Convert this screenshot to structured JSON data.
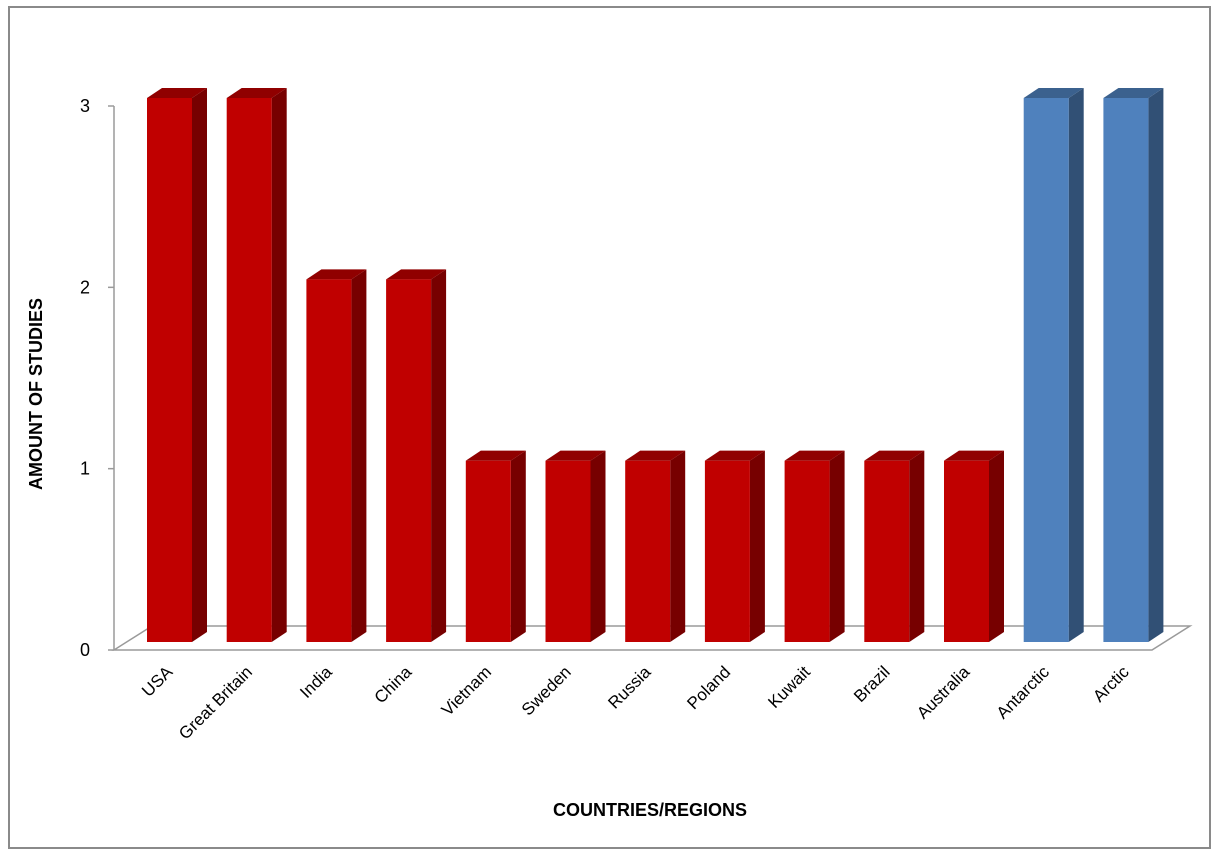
{
  "chart_data": {
    "type": "bar",
    "title": "",
    "xlabel": "COUNTRIES/REGIONS",
    "ylabel": "AMOUNT OF STUDIES",
    "categories": [
      "USA",
      "Great Britain",
      "India",
      "China",
      "Vietnam",
      "Sweden",
      "Russia",
      "Poland",
      "Kuwait",
      "Brazil",
      "Australia",
      "Antarctic",
      "Arctic"
    ],
    "values": [
      3,
      3,
      2,
      2,
      1,
      1,
      1,
      1,
      1,
      1,
      1,
      3,
      3
    ],
    "bar_colors": [
      "#c00000",
      "#c00000",
      "#c00000",
      "#c00000",
      "#c00000",
      "#c00000",
      "#c00000",
      "#c00000",
      "#c00000",
      "#c00000",
      "#c00000",
      "#4f81bd",
      "#4f81bd"
    ],
    "ylim": [
      0,
      3
    ],
    "yticks": [
      0,
      1,
      2,
      3
    ],
    "grid": false,
    "legend": "none",
    "style": "3d-column"
  }
}
